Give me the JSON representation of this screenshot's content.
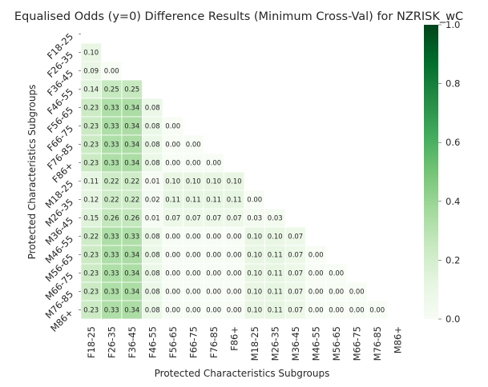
{
  "chart_data": {
    "type": "heatmap",
    "title": "Equalised Odds (y=0)  Difference Results (Minimum Cross-Val) for NZRISK_wC",
    "xlabel": "Protected Characteristics Subgroups",
    "ylabel": "Protected Characteristics Subgroups",
    "categories": [
      "F18-25",
      "F26-35",
      "F36-45",
      "F46-55",
      "F56-65",
      "F66-75",
      "F76-85",
      "F86+",
      "M18-25",
      "M26-35",
      "M36-45",
      "M46-55",
      "M56-65",
      "M66-75",
      "M76-85",
      "M86+"
    ],
    "lower_triangle_values": [
      [],
      [
        "0.10"
      ],
      [
        "0.09",
        "0.00"
      ],
      [
        "0.14",
        "0.25",
        "0.25"
      ],
      [
        "0.23",
        "0.33",
        "0.34",
        "0.08"
      ],
      [
        "0.23",
        "0.33",
        "0.34",
        "0.08",
        "0.00"
      ],
      [
        "0.23",
        "0.33",
        "0.34",
        "0.08",
        "0.00",
        "0.00"
      ],
      [
        "0.23",
        "0.33",
        "0.34",
        "0.08",
        "0.00",
        "0.00",
        "0.00"
      ],
      [
        "0.11",
        "0.22",
        "0.22",
        "0.01",
        "0.10",
        "0.10",
        "0.10",
        "0.10"
      ],
      [
        "0.12",
        "0.22",
        "0.22",
        "0.02",
        "0.11",
        "0.11",
        "0.11",
        "0.11",
        "0.00"
      ],
      [
        "0.15",
        "0.26",
        "0.26",
        "0.01",
        "0.07",
        "0.07",
        "0.07",
        "0.07",
        "0.03",
        "0.03"
      ],
      [
        "0.22",
        "0.33",
        "0.33",
        "0.08",
        "0.00",
        "0.00",
        "0.00",
        "0.00",
        "0.10",
        "0.10",
        "0.07"
      ],
      [
        "0.23",
        "0.33",
        "0.34",
        "0.08",
        "0.00",
        "0.00",
        "0.00",
        "0.00",
        "0.10",
        "0.11",
        "0.07",
        "0.00"
      ],
      [
        "0.23",
        "0.33",
        "0.34",
        "0.08",
        "0.00",
        "0.00",
        "0.00",
        "0.00",
        "0.10",
        "0.11",
        "0.07",
        "0.00",
        "0.00"
      ],
      [
        "0.23",
        "0.33",
        "0.34",
        "0.08",
        "0.00",
        "0.00",
        "0.00",
        "0.00",
        "0.10",
        "0.11",
        "0.07",
        "0.00",
        "0.00",
        "0.00"
      ],
      [
        "0.23",
        "0.33",
        "0.34",
        "0.08",
        "0.00",
        "0.00",
        "0.00",
        "0.00",
        "0.10",
        "0.11",
        "0.07",
        "0.00",
        "0.00",
        "0.00",
        "0.00"
      ]
    ],
    "colorbar": {
      "range": [
        0.0,
        1.0
      ],
      "ticks": [
        "0.0",
        "0.2",
        "0.4",
        "0.6",
        "0.8",
        "1.0"
      ],
      "colormap": "Greens",
      "low_color": "#f7fcf5",
      "high_color": "#00441b"
    },
    "mask": "upper-triangle-and-diagonal"
  }
}
